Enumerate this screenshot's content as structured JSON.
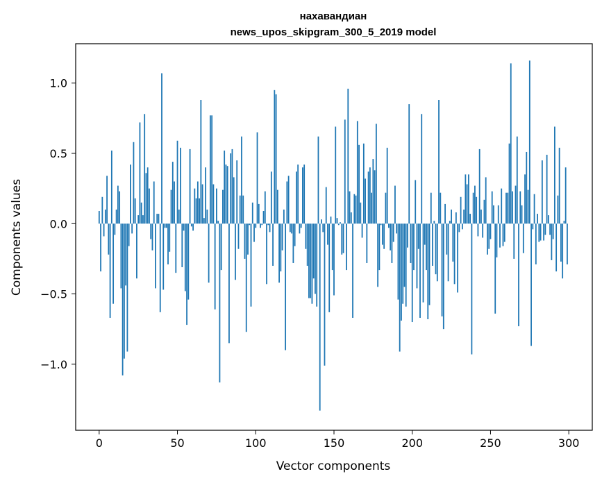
{
  "chart_data": {
    "type": "bar",
    "title": [
      "нахавандиан",
      "news_upos_skipgram_300_5_2019 model"
    ],
    "xlabel": "Vector components",
    "ylabel": "Components values",
    "xlim": [
      -15,
      315
    ],
    "ylim": [
      -1.47,
      1.28
    ],
    "xticks": [
      0,
      50,
      100,
      150,
      200,
      250,
      300
    ],
    "xtick_labels": [
      "0",
      "50",
      "100",
      "150",
      "200",
      "250",
      "300"
    ],
    "yticks": [
      -1.0,
      -0.5,
      0.0,
      0.5,
      1.0
    ],
    "ytick_labels": [
      "−1.0",
      "−0.5",
      "0.0",
      "0.5",
      "1.0"
    ],
    "grid": false,
    "bar_color": "#1f77b4",
    "x_start": 0,
    "values": [
      0.09,
      -0.34,
      0.19,
      -0.09,
      0.1,
      0.34,
      -0.22,
      -0.67,
      0.52,
      -0.57,
      -0.08,
      0.1,
      0.27,
      0.23,
      -0.46,
      -1.08,
      -0.96,
      -0.44,
      -0.91,
      -0.16,
      0.42,
      -0.07,
      0.58,
      0.18,
      -0.39,
      0.06,
      0.72,
      0.15,
      0.06,
      0.78,
      0.36,
      0.4,
      0.25,
      -0.11,
      -0.19,
      0.3,
      -0.46,
      0.07,
      0.07,
      -0.63,
      1.07,
      -0.47,
      -0.03,
      -0.03,
      -0.29,
      -0.2,
      0.24,
      0.44,
      0.3,
      -0.35,
      0.59,
      0.1,
      0.54,
      -0.31,
      -0.05,
      -0.48,
      -0.72,
      -0.54,
      0.53,
      -0.02,
      -0.05,
      0.25,
      0.18,
      0.3,
      0.18,
      0.88,
      0.28,
      0.04,
      0.4,
      0.1,
      -0.42,
      0.77,
      0.77,
      0.28,
      -0.61,
      0.25,
      0.02,
      -1.13,
      -0.33,
      0.24,
      0.52,
      0.42,
      0.41,
      -0.85,
      0.5,
      0.53,
      0.33,
      -0.4,
      0.45,
      -0.18,
      0.2,
      0.62,
      0.2,
      -0.25,
      -0.77,
      -0.22,
      -0.01,
      -0.59,
      0.15,
      -0.13,
      -0.03,
      0.65,
      0.14,
      -0.03,
      -0.01,
      0.09,
      0.23,
      -0.43,
      -0.01,
      -0.06,
      0.37,
      -0.3,
      0.95,
      0.92,
      0.24,
      -0.42,
      -0.34,
      -0.19,
      0.1,
      -0.9,
      0.3,
      0.34,
      -0.06,
      -0.07,
      -0.28,
      -0.16,
      0.37,
      0.42,
      -0.07,
      -0.03,
      0.4,
      0.42,
      -0.18,
      -0.3,
      -0.53,
      -0.53,
      -0.57,
      -0.39,
      -0.5,
      -0.59,
      0.62,
      -1.33,
      0.03,
      -0.06,
      -1.01,
      0.26,
      -0.15,
      -0.63,
      0.05,
      -0.33,
      -0.51,
      0.69,
      0.04,
      -0.01,
      0.01,
      -0.22,
      -0.21,
      0.74,
      -0.33,
      0.96,
      0.23,
      0.08,
      -0.67,
      0.21,
      0.2,
      0.73,
      0.56,
      0.15,
      -0.1,
      0.57,
      0.32,
      -0.28,
      0.37,
      0.4,
      0.22,
      0.46,
      0.38,
      0.71,
      -0.45,
      -0.33,
      -0.01,
      -0.15,
      -0.18,
      0.22,
      0.54,
      -0.03,
      -0.19,
      -0.28,
      -0.13,
      0.27,
      -0.07,
      -0.54,
      -0.91,
      -0.69,
      -0.57,
      -0.45,
      -0.59,
      -0.17,
      0.85,
      -0.28,
      -0.7,
      -0.33,
      0.31,
      -0.46,
      -0.18,
      -0.67,
      0.78,
      -0.56,
      -0.15,
      -0.33,
      -0.68,
      -0.58,
      0.22,
      -0.3,
      0.02,
      -0.36,
      -0.41,
      0.88,
      0.22,
      -0.66,
      -0.75,
      0.14,
      -0.22,
      -0.41,
      0.02,
      0.1,
      -0.27,
      -0.43,
      0.08,
      -0.49,
      -0.06,
      0.19,
      -0.04,
      0.1,
      0.35,
      0.28,
      0.35,
      0.07,
      -0.93,
      0.22,
      0.27,
      0.19,
      -0.09,
      0.53,
      0.1,
      -0.1,
      0.17,
      0.33,
      -0.22,
      -0.18,
      -0.11,
      0.23,
      0.13,
      -0.64,
      -0.24,
      0.13,
      -0.17,
      0.25,
      -0.16,
      -0.13,
      0.22,
      0.22,
      0.57,
      1.14,
      0.23,
      -0.25,
      0.27,
      0.62,
      -0.73,
      0.23,
      0.13,
      -0.21,
      0.35,
      0.51,
      0.24,
      1.16,
      -0.87,
      -0.04,
      0.21,
      -0.29,
      0.07,
      -0.13,
      -0.12,
      0.45,
      -0.12,
      -0.08,
      0.49,
      0.06,
      -0.08,
      -0.26,
      -0.11,
      0.69,
      -0.34,
      0.2,
      0.54,
      -0.27,
      -0.39,
      0.02,
      0.4,
      -0.29
    ]
  }
}
